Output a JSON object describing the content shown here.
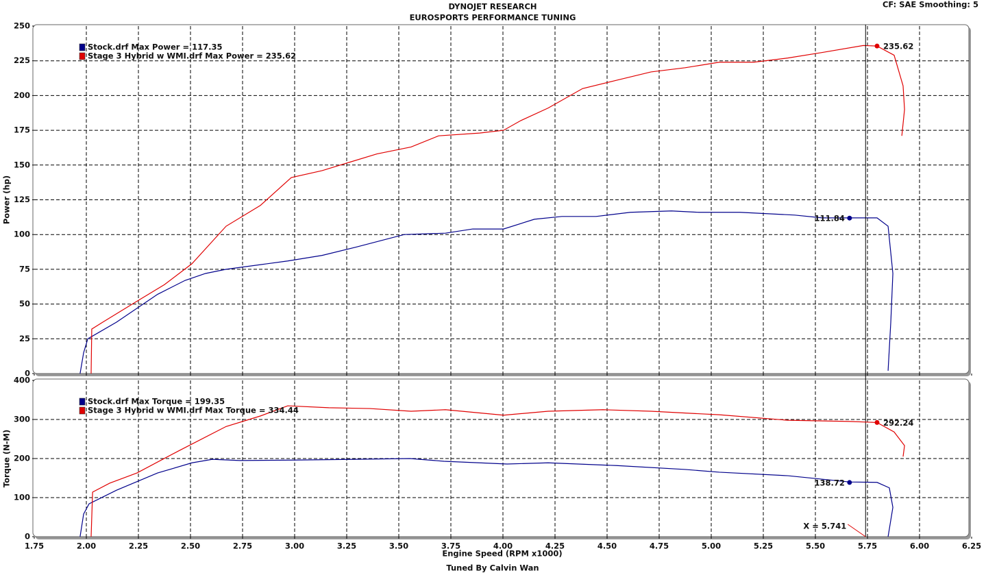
{
  "header": {
    "title": "DYNOJET RESEARCH",
    "subtitle": "EUROSPORTS PERFORMANCE TUNING",
    "settings": "CF: SAE  Smoothing: 5",
    "footer": "Tuned By Calvin Wan"
  },
  "chart_data": [
    {
      "type": "line",
      "ylabel": "Power (hp)",
      "xlim": [
        1.75,
        6.25
      ],
      "ylim": [
        0,
        250
      ],
      "xticks": [
        1.75,
        {
          "value": 2,
          "label": "2.00"
        },
        2.25,
        {
          "value": 2.5,
          "label": "2.50"
        },
        2.75,
        {
          "value": 3,
          "label": "3.00"
        },
        3.25,
        {
          "value": 3.5,
          "label": "3.50"
        },
        3.75,
        {
          "value": 4,
          "label": "4.00"
        },
        4.25,
        {
          "value": 4.5,
          "label": "4.50"
        },
        4.75,
        {
          "value": 5,
          "label": "5.00"
        },
        5.25,
        {
          "value": 5.5,
          "label": "5.50"
        },
        5.75,
        {
          "value": 6,
          "label": "6.00"
        },
        6.25
      ],
      "yticks": [
        0,
        25,
        50,
        75,
        100,
        125,
        150,
        175,
        200,
        225,
        250
      ],
      "grid": true,
      "series": [
        {
          "name": "Stock.drf Max Power = 117.35",
          "color": "#00008b",
          "x": [
            1.97,
            1.987,
            2.007,
            2.145,
            2.342,
            2.474,
            2.572,
            2.671,
            2.868,
            2.967,
            3.132,
            3.296,
            3.526,
            3.724,
            3.855,
            4.003,
            4.151,
            4.283,
            4.447,
            4.612,
            4.809,
            4.941,
            5.138,
            5.401,
            5.533,
            5.664,
            5.796,
            5.849,
            5.872,
            5.862,
            5.849
          ],
          "values": [
            0,
            15,
            25,
            37,
            57,
            67,
            72,
            75,
            79,
            81,
            85,
            91,
            100,
            101,
            104,
            104,
            111,
            113,
            113,
            116,
            117,
            116,
            116,
            114,
            112,
            112,
            112,
            106,
            72,
            37,
            2
          ],
          "marker": {
            "x": 5.664,
            "value": 111.84
          }
        },
        {
          "name": "Stage 3 Hybrid w WMI.drf Max Power = 235.62",
          "color": "#e00000",
          "x": [
            2.023,
            2.026,
            2.079,
            2.243,
            2.375,
            2.507,
            2.671,
            2.836,
            2.984,
            3.132,
            3.263,
            3.395,
            3.559,
            3.691,
            3.888,
            4.003,
            4.086,
            4.217,
            4.382,
            4.546,
            4.711,
            4.875,
            5.039,
            5.204,
            5.368,
            5.533,
            5.73,
            5.796,
            5.878,
            5.921,
            5.928,
            5.915
          ],
          "values": [
            0,
            32,
            37,
            52,
            64,
            79,
            106,
            121,
            141,
            146,
            152,
            158,
            163,
            171,
            173,
            175,
            182,
            191,
            205,
            211,
            217,
            220,
            224,
            224,
            227,
            231,
            236,
            235.62,
            229,
            207,
            190,
            171
          ],
          "marker": {
            "x": 5.796,
            "value": 235.62
          }
        }
      ]
    },
    {
      "type": "line",
      "ylabel": "Torque (N-M)",
      "xlabel": "Engine Speed (RPM x1000)",
      "xlim": [
        1.75,
        6.25
      ],
      "ylim": [
        0,
        400
      ],
      "xticks": [
        1.75,
        {
          "value": 2,
          "label": "2.00"
        },
        2.25,
        {
          "value": 2.5,
          "label": "2.50"
        },
        2.75,
        {
          "value": 3,
          "label": "3.00"
        },
        3.25,
        {
          "value": 3.5,
          "label": "3.50"
        },
        3.75,
        {
          "value": 4,
          "label": "4.00"
        },
        4.25,
        {
          "value": 4.5,
          "label": "4.50"
        },
        4.75,
        {
          "value": 5,
          "label": "5.00"
        },
        5.25,
        {
          "value": 5.5,
          "label": "5.50"
        },
        5.75,
        {
          "value": 6,
          "label": "6.00"
        },
        6.25
      ],
      "yticks": [
        0,
        100,
        200,
        300,
        400
      ],
      "grid": true,
      "cursor": {
        "value": 5.741,
        "label": "X = 5.741"
      },
      "series": [
        {
          "name": "Stock.drf Max Torque = 199.35",
          "color": "#00008b",
          "x": [
            1.97,
            1.987,
            2.013,
            2.145,
            2.342,
            2.507,
            2.605,
            2.737,
            2.993,
            3.289,
            3.553,
            3.717,
            4.02,
            4.217,
            4.546,
            4.875,
            5.039,
            5.368,
            5.664,
            5.796,
            5.855,
            5.872,
            5.849
          ],
          "values": [
            0,
            58,
            84,
            119,
            163,
            189,
            198,
            195,
            196,
            198,
            200,
            193,
            186,
            189,
            182,
            172,
            165,
            156,
            140,
            139,
            125,
            75,
            0
          ],
          "marker": {
            "x": 5.664,
            "value": 138.72
          }
        },
        {
          "name": "Stage 3 Hybrid w WMI.drf Max Torque = 334.44",
          "color": "#e00000",
          "x": [
            2.023,
            2.03,
            2.112,
            2.243,
            2.441,
            2.671,
            2.836,
            2.967,
            3.164,
            3.362,
            3.559,
            3.724,
            4.003,
            4.217,
            4.48,
            4.711,
            5.039,
            5.368,
            5.664,
            5.796,
            5.878,
            5.928,
            5.921
          ],
          "values": [
            0,
            114,
            137,
            163,
            219,
            282,
            309,
            335,
            330,
            328,
            321,
            325,
            311,
            321,
            325,
            321,
            312,
            298,
            295,
            292.24,
            268,
            233,
            205
          ],
          "marker": {
            "x": 5.796,
            "value": 292.24
          }
        }
      ]
    }
  ]
}
